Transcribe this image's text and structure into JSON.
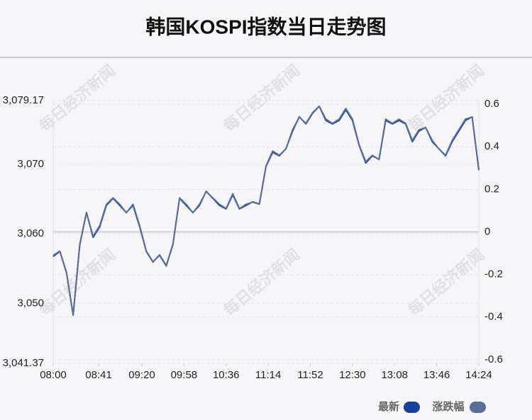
{
  "chart_data": {
    "type": "line",
    "title": "韩国KOSPI指数当日走势图",
    "watermark": "每日经济新闻",
    "x": [
      "08:00",
      "08:06",
      "08:12",
      "08:18",
      "08:24",
      "08:30",
      "08:36",
      "08:42",
      "08:48",
      "08:54",
      "09:00",
      "09:06",
      "09:12",
      "09:18",
      "09:24",
      "09:30",
      "09:36",
      "09:42",
      "09:48",
      "09:54",
      "10:00",
      "10:06",
      "10:12",
      "10:18",
      "10:24",
      "10:30",
      "10:36",
      "10:42",
      "10:48",
      "10:54",
      "11:00",
      "11:06",
      "11:12",
      "11:18",
      "11:24",
      "11:30",
      "11:36",
      "11:42",
      "11:48",
      "11:54",
      "12:00",
      "12:06",
      "12:12",
      "12:18",
      "12:24",
      "12:30",
      "12:36",
      "12:42",
      "12:48",
      "12:54",
      "13:00",
      "13:06",
      "13:12",
      "13:18",
      "13:24",
      "13:30",
      "13:36",
      "13:42",
      "13:48",
      "13:54",
      "14:00",
      "14:06",
      "14:12",
      "14:18",
      "14:24"
    ],
    "xticks": [
      "08:00",
      "08:41",
      "09:20",
      "09:58",
      "10:36",
      "11:14",
      "11:52",
      "12:30",
      "13:08",
      "13:46",
      "14:24"
    ],
    "series": [
      {
        "name": "最新",
        "color": "#1a3fa0",
        "values": [
          3056.75,
          3057.47,
          3054.41,
          3048.29,
          3058.48,
          3063.07,
          3059.5,
          3061.03,
          3064.09,
          3065.11,
          3064.09,
          3063.07,
          3064.09,
          3061.03,
          3057.47,
          3055.94,
          3056.96,
          3055.43,
          3058.48,
          3065.11,
          3064.09,
          3063.07,
          3064.09,
          3066.13,
          3065.11,
          3064.09,
          3063.58,
          3065.62,
          3063.58,
          3064.09,
          3064.6,
          3064.29,
          3069.69,
          3071.73,
          3071.22,
          3072.24,
          3074.79,
          3076.83,
          3075.81,
          3077.34,
          3078.35,
          3076.32,
          3075.81,
          3076.32,
          3077.85,
          3076.32,
          3072.75,
          3070.2,
          3071.22,
          3070.71,
          3076.32,
          3075.81,
          3076.32,
          3075.81,
          3073.26,
          3074.79,
          3075.3,
          3073.26,
          3072.24,
          3071.22,
          3073.26,
          3074.79,
          3076.32,
          3076.83,
          3069.18
        ]
      },
      {
        "name": "涨跌幅",
        "color": "#5a6e9a",
        "axis": "y2",
        "values": [
          -0.11,
          -0.09,
          -0.19,
          -0.39,
          -0.06,
          0.09,
          -0.02,
          0.03,
          0.13,
          0.16,
          0.13,
          0.09,
          0.13,
          0.03,
          -0.09,
          -0.14,
          -0.11,
          -0.16,
          -0.06,
          0.16,
          0.13,
          0.09,
          0.13,
          0.19,
          0.16,
          0.13,
          0.11,
          0.18,
          0.11,
          0.13,
          0.14,
          0.13,
          0.31,
          0.38,
          0.36,
          0.39,
          0.48,
          0.54,
          0.51,
          0.56,
          0.59,
          0.53,
          0.51,
          0.53,
          0.58,
          0.53,
          0.41,
          0.33,
          0.36,
          0.34,
          0.53,
          0.51,
          0.53,
          0.51,
          0.43,
          0.48,
          0.49,
          0.43,
          0.39,
          0.36,
          0.43,
          0.48,
          0.53,
          0.54,
          0.29
        ]
      }
    ],
    "ylim": [
      3041.37,
      3079.17
    ],
    "yticks": [
      {
        "value": 3041.37,
        "label": "3,041.37"
      },
      {
        "value": 3050,
        "label": "3,050"
      },
      {
        "value": 3060,
        "label": "3,060"
      },
      {
        "value": 3070,
        "label": "3,070"
      },
      {
        "value": 3079.17,
        "label": "3,079.17"
      }
    ],
    "y2lim": [
      -0.617,
      0.617
    ],
    "y2ticks": [
      -0.6,
      -0.4,
      -0.2,
      0,
      0.2,
      0.4,
      0.6
    ],
    "grid": true
  }
}
